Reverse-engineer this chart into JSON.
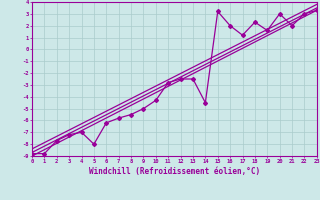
{
  "xlabel": "Windchill (Refroidissement éolien,°C)",
  "xlim": [
    0,
    23
  ],
  "ylim": [
    -9,
    4
  ],
  "xticks": [
    0,
    1,
    2,
    3,
    4,
    5,
    6,
    7,
    8,
    9,
    10,
    11,
    12,
    13,
    14,
    15,
    16,
    17,
    18,
    19,
    20,
    21,
    22,
    23
  ],
  "yticks": [
    -9,
    -8,
    -7,
    -6,
    -5,
    -4,
    -3,
    -2,
    -1,
    0,
    1,
    2,
    3,
    4
  ],
  "bg_color": "#cde8e8",
  "line_color": "#990099",
  "grid_color": "#aacccc",
  "jagged_x": [
    0,
    1,
    2,
    3,
    4,
    5,
    6,
    7,
    8,
    9,
    10,
    11,
    12,
    13,
    14,
    15,
    16,
    17,
    18,
    19,
    20,
    21,
    22,
    23
  ],
  "jagged_y": [
    -8.8,
    -8.8,
    -7.7,
    -7.2,
    -7.0,
    -8.0,
    -6.2,
    -5.8,
    -5.5,
    -5.0,
    -4.3,
    -2.8,
    -2.5,
    -2.5,
    -4.5,
    3.2,
    2.0,
    1.2,
    2.3,
    1.6,
    3.0,
    2.0,
    3.0,
    3.3
  ],
  "smooth_lines": [
    {
      "x0": 0,
      "y0": -9.0,
      "x1": 23,
      "y1": 3.3
    },
    {
      "x0": 0,
      "y0": -8.7,
      "x1": 23,
      "y1": 3.5
    },
    {
      "x0": 0,
      "y0": -8.4,
      "x1": 23,
      "y1": 3.8
    }
  ]
}
